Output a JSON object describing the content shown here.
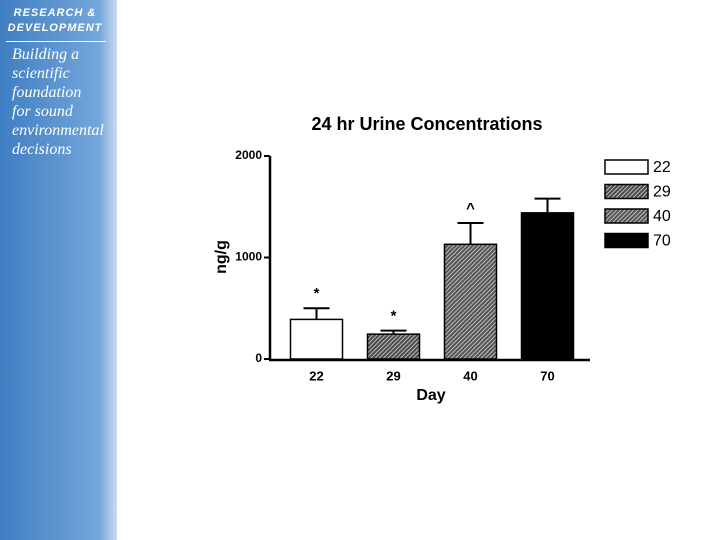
{
  "sidebar": {
    "heading": [
      "RESEARCH &",
      "DEVELOPMENT"
    ],
    "tagline": [
      "Building a",
      "scientific",
      "foundation",
      "for sound",
      "environmental",
      "decisions"
    ]
  },
  "chart_data": {
    "type": "bar",
    "title": "24 hr Urine Concentrations",
    "x_label": "Day",
    "y_label": "ng/g",
    "categories": [
      "22",
      "29",
      "40",
      "70"
    ],
    "values": [
      390,
      245,
      1130,
      1440
    ],
    "errors": [
      110,
      35,
      210,
      140
    ],
    "annotations": [
      "*",
      "*",
      "^",
      null
    ],
    "colors": [
      "#ffffff",
      "#4a4a4a",
      "#555555",
      "#000000"
    ],
    "hatch": [
      false,
      true,
      true,
      false
    ],
    "legend": [
      "22",
      "29",
      "40",
      "70"
    ],
    "ylim": [
      0,
      2000
    ],
    "yticks": [
      0,
      1000,
      2000
    ],
    "grid": false
  }
}
